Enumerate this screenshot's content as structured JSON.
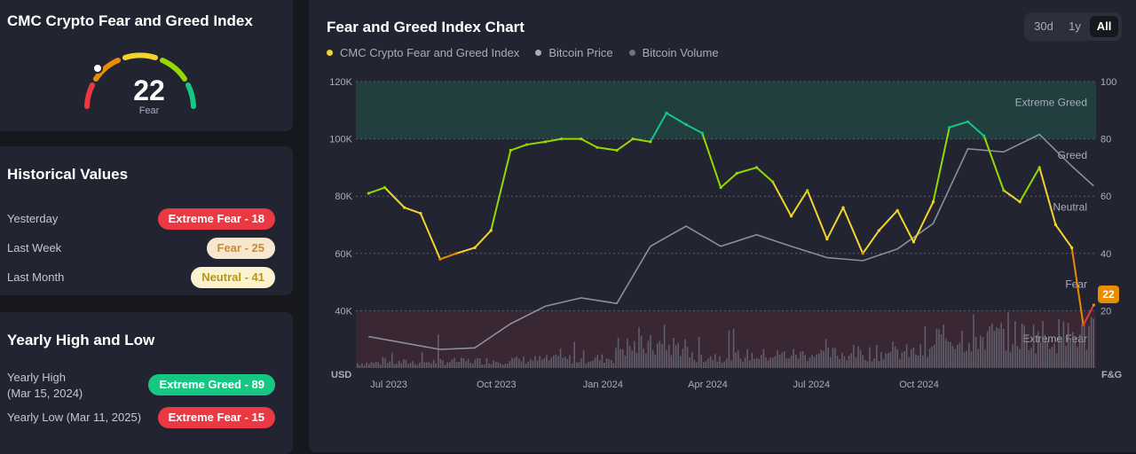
{
  "index_card": {
    "title": "CMC Crypto Fear and Greed Index",
    "value": "22",
    "label": "Fear"
  },
  "historical": {
    "title": "Historical Values",
    "rows": [
      {
        "label": "Yesterday",
        "value": "Extreme Fear - 18"
      },
      {
        "label": "Last Week",
        "value": "Fear - 25"
      },
      {
        "label": "Last Month",
        "value": "Neutral - 41"
      }
    ]
  },
  "yearly": {
    "title": "Yearly High and Low",
    "high_label_line1": "Yearly High",
    "high_label_line2": "(Mar 15, 2024)",
    "high_value": "Extreme Greed - 89",
    "low_label": "Yearly Low (Mar 11, 2025)",
    "low_value": "Extreme Fear - 15"
  },
  "chart_header": {
    "title": "Fear and Greed Index Chart",
    "ranges": [
      "30d",
      "1y",
      "All"
    ],
    "active_range": "All"
  },
  "colors": {
    "extreme_fear": "#ea3943",
    "fear": "#ea8c00",
    "neutral": "#f3d42f",
    "greed": "#93d900",
    "extreme_greed": "#16c784",
    "btc_price": "#8a8f9c",
    "btc_volume": "#6e7280"
  },
  "chart_data": {
    "type": "line",
    "x_ticks": [
      "Jul 2023",
      "Oct 2023",
      "Jan 2024",
      "Apr 2024",
      "Jul 2024",
      "Oct 2024"
    ],
    "left_axis": {
      "label": "USD",
      "ticks": [
        "120K",
        "100K",
        "80K",
        "60K",
        "40K"
      ],
      "range": [
        20000,
        120000
      ]
    },
    "right_axis": {
      "label": "F&G",
      "ticks": [
        "100",
        "80",
        "60",
        "40",
        "20"
      ],
      "range": [
        0,
        100
      ]
    },
    "bands": [
      "Extreme Greed",
      "Greed",
      "Neutral",
      "Fear",
      "Extreme Fear"
    ],
    "current_value": "22",
    "legend": [
      "CMC Crypto Fear and Greed Index",
      "Bitcoin Price",
      "Bitcoin Volume"
    ],
    "series": [
      {
        "name": "CMC Crypto Fear and Greed Index",
        "x": [
          "2023-07-01",
          "2023-07-15",
          "2023-08-01",
          "2023-08-15",
          "2023-09-01",
          "2023-09-15",
          "2023-10-01",
          "2023-10-15",
          "2023-11-01",
          "2023-11-15",
          "2023-12-01",
          "2023-12-15",
          "2024-01-01",
          "2024-01-15",
          "2024-02-01",
          "2024-02-15",
          "2024-03-01",
          "2024-03-15",
          "2024-04-01",
          "2024-04-15",
          "2024-05-01",
          "2024-05-15",
          "2024-06-01",
          "2024-06-15",
          "2024-07-01",
          "2024-07-15",
          "2024-08-01",
          "2024-08-15",
          "2024-09-01",
          "2024-09-15",
          "2024-10-01",
          "2024-10-15",
          "2024-11-01",
          "2024-11-15",
          "2024-12-01",
          "2024-12-15",
          "2025-01-01",
          "2025-01-15",
          "2025-02-01",
          "2025-02-15",
          "2025-03-01",
          "2025-03-11",
          "2025-03-20"
        ],
        "values": [
          61,
          63,
          56,
          54,
          38,
          40,
          42,
          48,
          76,
          78,
          79,
          80,
          80,
          77,
          76,
          80,
          79,
          89,
          85,
          82,
          63,
          68,
          70,
          65,
          53,
          62,
          45,
          56,
          40,
          48,
          55,
          44,
          58,
          84,
          86,
          81,
          62,
          58,
          70,
          50,
          42,
          15,
          22
        ]
      },
      {
        "name": "Bitcoin Price",
        "x": [
          "2023-07-01",
          "2023-08-01",
          "2023-09-01",
          "2023-10-01",
          "2023-11-01",
          "2023-12-01",
          "2024-01-01",
          "2024-02-01",
          "2024-03-01",
          "2024-04-01",
          "2024-05-01",
          "2024-06-01",
          "2024-07-01",
          "2024-08-01",
          "2024-09-01",
          "2024-10-01",
          "2024-11-01",
          "2024-12-01",
          "2025-01-01",
          "2025-02-01",
          "2025-03-01",
          "2025-03-20"
        ],
        "values": [
          30500,
          29200,
          26000,
          27500,
          35000,
          42000,
          44000,
          43000,
          62000,
          70000,
          62000,
          67000,
          62000,
          59000,
          57000,
          62000,
          70000,
          97000,
          95000,
          102000,
          90000,
          84000
        ]
      }
    ]
  }
}
